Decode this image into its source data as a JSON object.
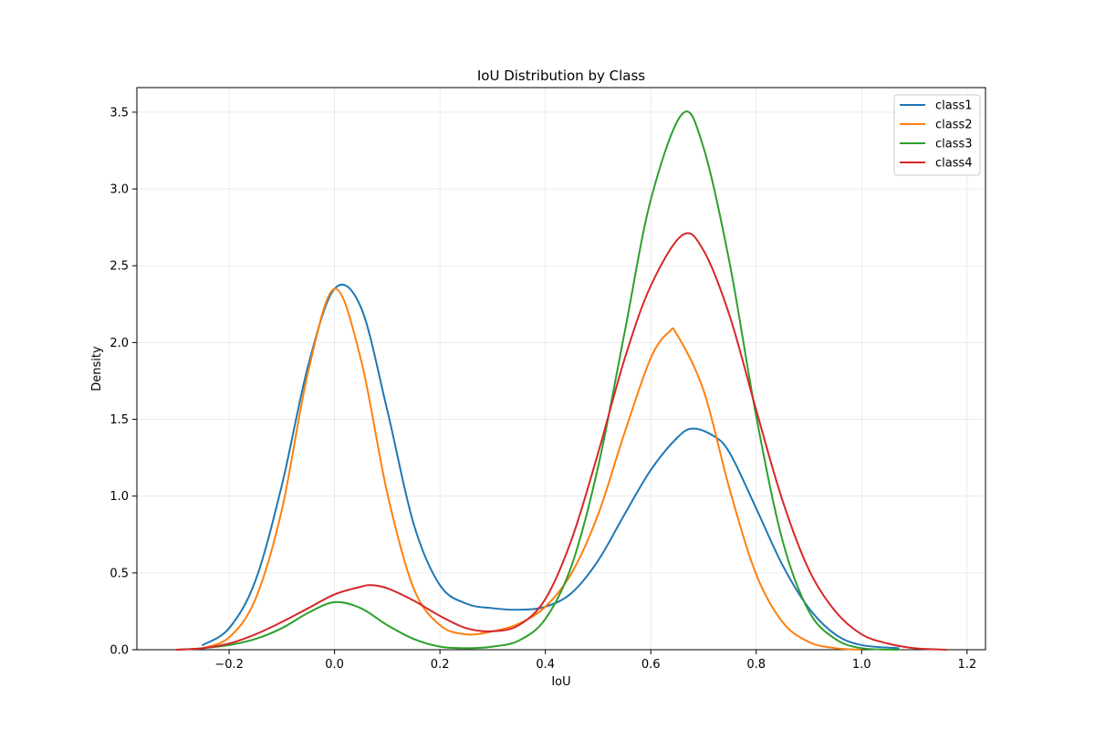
{
  "chart_data": {
    "type": "line",
    "title": "IoU Distribution by Class",
    "xlabel": "IoU",
    "ylabel": "Density",
    "xlim": [
      -0.375,
      1.235
    ],
    "ylim": [
      0,
      3.66
    ],
    "x_ticks": [
      -0.2,
      0.0,
      0.2,
      0.4,
      0.6,
      0.8,
      1.0,
      1.2
    ],
    "x_tick_labels": [
      "−0.2",
      "0.0",
      "0.2",
      "0.4",
      "0.6",
      "0.8",
      "1.0",
      "1.2"
    ],
    "y_ticks": [
      0.0,
      0.5,
      1.0,
      1.5,
      2.0,
      2.5,
      3.0,
      3.5
    ],
    "y_tick_labels": [
      "0.0",
      "0.5",
      "1.0",
      "1.5",
      "2.0",
      "2.5",
      "3.0",
      "3.5"
    ],
    "grid": true,
    "legend_position": "top-right",
    "curve_points_estimated": true,
    "series": [
      {
        "name": "class1",
        "color": "#1f77b4",
        "x": [
          -0.25,
          -0.2,
          -0.15,
          -0.1,
          -0.05,
          0.0,
          0.05,
          0.1,
          0.15,
          0.2,
          0.25,
          0.3,
          0.35,
          0.4,
          0.45,
          0.5,
          0.55,
          0.6,
          0.65,
          0.68,
          0.72,
          0.75,
          0.8,
          0.85,
          0.9,
          0.95,
          1.0,
          1.07
        ],
        "y": [
          0.03,
          0.14,
          0.45,
          1.07,
          1.85,
          2.35,
          2.23,
          1.56,
          0.82,
          0.42,
          0.3,
          0.27,
          0.26,
          0.28,
          0.37,
          0.58,
          0.88,
          1.17,
          1.38,
          1.44,
          1.39,
          1.28,
          0.92,
          0.55,
          0.27,
          0.1,
          0.03,
          0.01
        ]
      },
      {
        "name": "class2",
        "color": "#ff7f0e",
        "x": [
          -0.25,
          -0.2,
          -0.15,
          -0.1,
          -0.05,
          0.0,
          0.05,
          0.1,
          0.15,
          0.2,
          0.25,
          0.3,
          0.35,
          0.4,
          0.45,
          0.5,
          0.55,
          0.6,
          0.635,
          0.65,
          0.7,
          0.75,
          0.8,
          0.85,
          0.9,
          0.95,
          1.0
        ],
        "y": [
          0.01,
          0.08,
          0.33,
          0.91,
          1.81,
          2.35,
          1.89,
          1.02,
          0.4,
          0.16,
          0.1,
          0.12,
          0.17,
          0.28,
          0.5,
          0.88,
          1.41,
          1.9,
          2.07,
          2.05,
          1.69,
          1.04,
          0.49,
          0.18,
          0.05,
          0.01,
          0.0
        ]
      },
      {
        "name": "class3",
        "color": "#2ca02c",
        "x": [
          -0.3,
          -0.25,
          -0.2,
          -0.15,
          -0.1,
          -0.05,
          0.0,
          0.05,
          0.1,
          0.15,
          0.2,
          0.25,
          0.3,
          0.35,
          0.4,
          0.45,
          0.5,
          0.55,
          0.6,
          0.66,
          0.7,
          0.75,
          0.8,
          0.85,
          0.9,
          0.95,
          1.0,
          1.07
        ],
        "y": [
          0.0,
          0.01,
          0.03,
          0.07,
          0.14,
          0.24,
          0.31,
          0.27,
          0.16,
          0.07,
          0.02,
          0.01,
          0.02,
          0.06,
          0.2,
          0.55,
          1.19,
          2.06,
          2.93,
          3.49,
          3.27,
          2.51,
          1.52,
          0.71,
          0.25,
          0.07,
          0.01,
          0.0
        ]
      },
      {
        "name": "class4",
        "color": "#d62728",
        "x": [
          -0.3,
          -0.25,
          -0.2,
          -0.15,
          -0.1,
          -0.05,
          0.0,
          0.05,
          0.07,
          0.1,
          0.15,
          0.2,
          0.25,
          0.3,
          0.35,
          0.4,
          0.45,
          0.5,
          0.55,
          0.6,
          0.66,
          0.7,
          0.75,
          0.8,
          0.85,
          0.9,
          0.95,
          1.0,
          1.05,
          1.1,
          1.16
        ],
        "y": [
          0.0,
          0.01,
          0.04,
          0.1,
          0.18,
          0.27,
          0.36,
          0.41,
          0.42,
          0.4,
          0.32,
          0.22,
          0.14,
          0.12,
          0.16,
          0.33,
          0.72,
          1.28,
          1.89,
          2.37,
          2.7,
          2.6,
          2.17,
          1.56,
          0.97,
          0.52,
          0.25,
          0.1,
          0.04,
          0.01,
          0.0
        ]
      }
    ]
  }
}
